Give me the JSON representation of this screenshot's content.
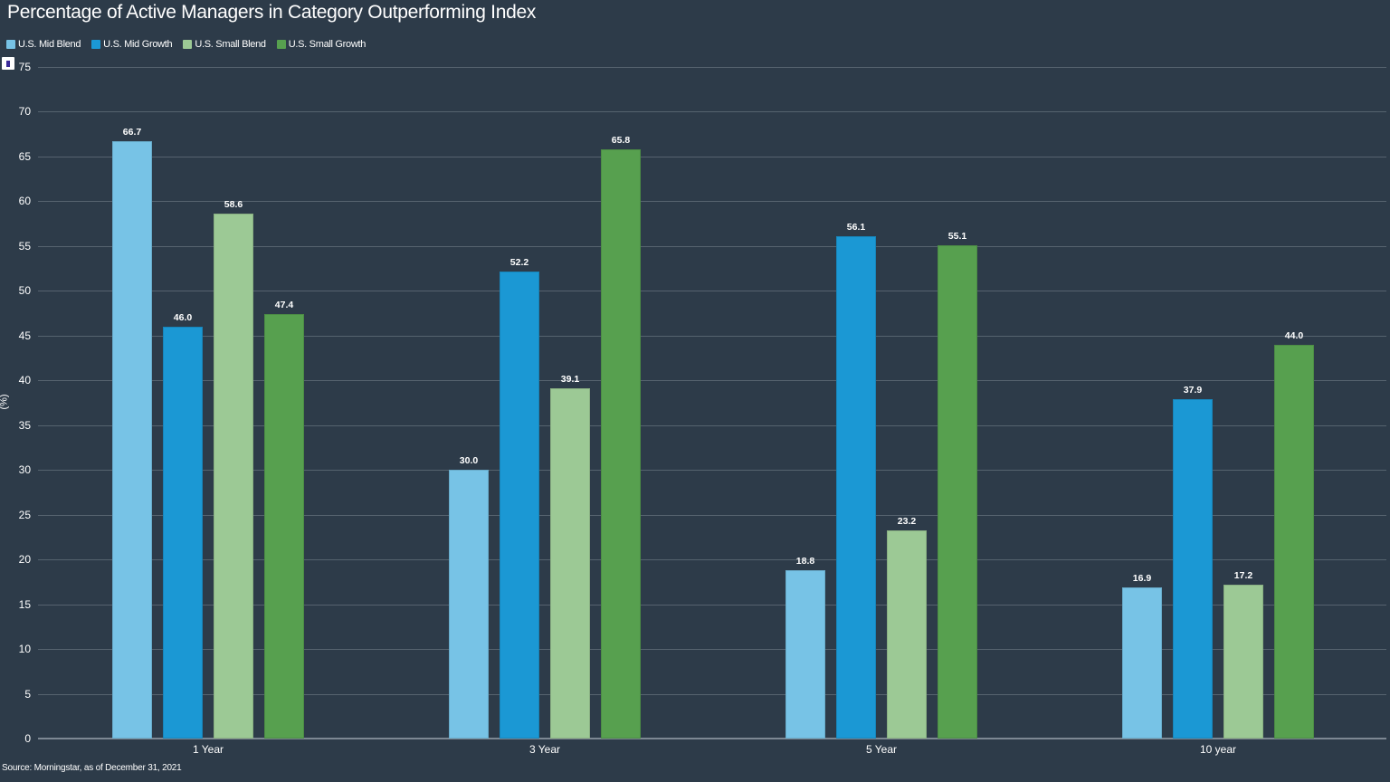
{
  "title": "Percentage of Active Managers in Category Outperforming Index",
  "legend": [
    {
      "label": "U.S. Mid Blend",
      "color": "#77c3e6"
    },
    {
      "label": "U.S. Mid Growth",
      "color": "#1b98d4"
    },
    {
      "label": "U.S. Small Blend",
      "color": "#9cc995"
    },
    {
      "label": "U.S. Small Growth",
      "color": "#57a04f"
    }
  ],
  "menu_icon": "chart-menu-icon",
  "y_axis": {
    "label": "(%)",
    "ticks": [
      "0",
      "5",
      "10",
      "15",
      "20",
      "25",
      "30",
      "35",
      "40",
      "45",
      "50",
      "55",
      "60",
      "65",
      "70",
      "75"
    ]
  },
  "x_axis": {
    "labels": [
      "1 Year",
      "3 Year",
      "5 Year",
      "10 year"
    ]
  },
  "source": "Source: Morningstar, as of December 31, 2021",
  "chart_data": {
    "type": "bar",
    "title": "Percentage of Active Managers in Category Outperforming Index",
    "xlabel": "",
    "ylabel": "(%)",
    "ylim": [
      0,
      75
    ],
    "grid": true,
    "legend_position": "top-left",
    "categories": [
      "1 Year",
      "3 Year",
      "5 Year",
      "10 year"
    ],
    "series": [
      {
        "name": "U.S. Mid Blend",
        "color": "#77c3e6",
        "values": [
          66.7,
          30.0,
          18.8,
          16.9
        ],
        "labels": [
          "66.7",
          "30.0",
          "18.8",
          "16.9"
        ]
      },
      {
        "name": "U.S. Mid Growth",
        "color": "#1b98d4",
        "values": [
          46.0,
          52.2,
          56.1,
          37.9
        ],
        "labels": [
          "46.0",
          "52.2",
          "56.1",
          "37.9"
        ]
      },
      {
        "name": "U.S. Small Blend",
        "color": "#9cc995",
        "values": [
          58.6,
          39.1,
          23.2,
          17.2
        ],
        "labels": [
          "58.6",
          "39.1",
          "23.2",
          "17.2"
        ]
      },
      {
        "name": "U.S. Small Growth",
        "color": "#57a04f",
        "values": [
          47.4,
          65.8,
          55.1,
          44.0
        ],
        "labels": [
          "47.4",
          "65.8",
          "55.1",
          "44.0"
        ]
      }
    ],
    "annotations": [
      "Source: Morningstar, as of December 31, 2021"
    ]
  }
}
